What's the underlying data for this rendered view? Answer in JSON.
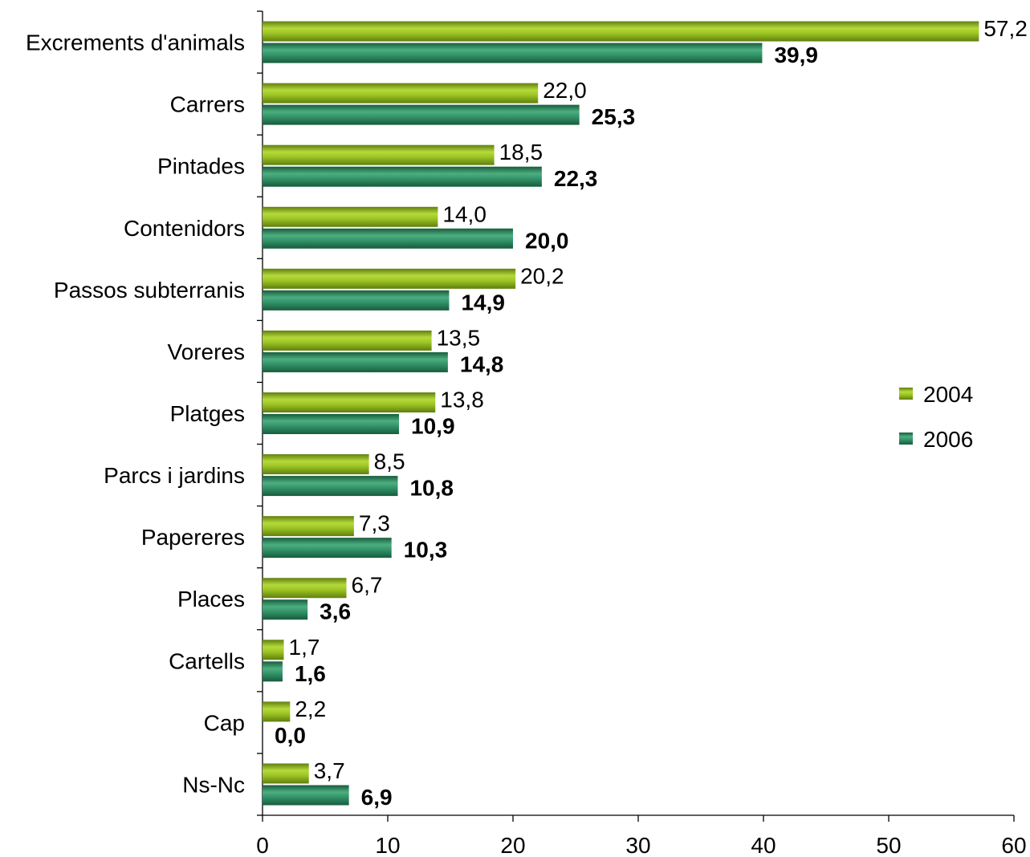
{
  "chart_data": {
    "type": "bar",
    "orientation": "horizontal",
    "categories": [
      "Excrements d'animals",
      "Carrers",
      "Pintades",
      "Contenidors",
      "Passos subterranis",
      "Voreres",
      "Platges",
      "Parcs i jardins",
      "Papereres",
      "Places",
      "Cartells",
      "Cap",
      "Ns-Nc"
    ],
    "series": [
      {
        "name": "2004",
        "color": "#8db81a",
        "values": [
          57.2,
          22.0,
          18.5,
          14.0,
          20.2,
          13.5,
          13.8,
          8.5,
          7.3,
          6.7,
          1.7,
          2.2,
          3.7
        ],
        "labels": [
          "57,2",
          "22,0",
          "18,5",
          "14,0",
          "20,2",
          "13,5",
          "13,8",
          "8,5",
          "7,3",
          "6,7",
          "1,7",
          "2,2",
          "3,7"
        ]
      },
      {
        "name": "2006",
        "color": "#2e8b63",
        "values": [
          39.9,
          25.3,
          22.3,
          20.0,
          14.9,
          14.8,
          10.9,
          10.8,
          10.3,
          3.6,
          1.6,
          0.0,
          6.9
        ],
        "labels": [
          "39,9",
          "25,3",
          "22,3",
          "20,0",
          "14,9",
          "14,8",
          "10,9",
          "10,8",
          "10,3",
          "3,6",
          "1,6",
          "0,0",
          "6,9"
        ]
      }
    ],
    "xlim": [
      0,
      60
    ],
    "xticks": [
      "0",
      "10",
      "20",
      "30",
      "40",
      "50",
      "60"
    ],
    "grid": false,
    "legend_position": "right"
  }
}
